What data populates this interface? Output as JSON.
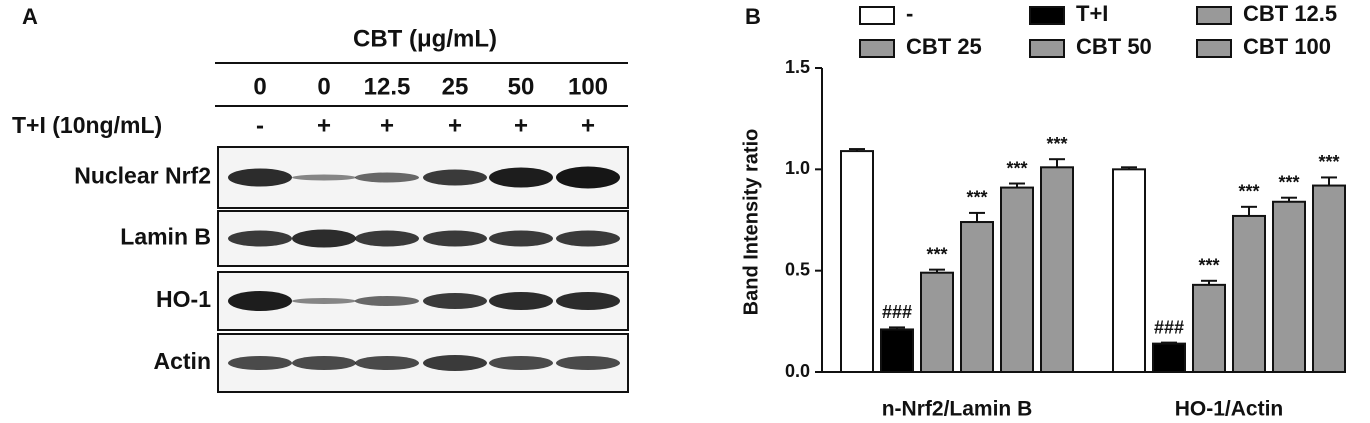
{
  "panel_a": {
    "label": "A",
    "header": "CBT (μg/mL)",
    "concentrations": [
      "0",
      "0",
      "12.5",
      "25",
      "50",
      "100"
    ],
    "treatment_label": "T+I (10ng/mL)",
    "treatment": [
      "-",
      "+",
      "+",
      "+",
      "+",
      "+"
    ],
    "rows": [
      "Nuclear Nrf2",
      "Lamin B",
      "HO-1",
      "Actin"
    ]
  },
  "chart_data": {
    "type": "bar",
    "panel_label": "B",
    "y_label": "Band Intensity ratio",
    "categories": [
      "n-Nrf2/Lamin B",
      "HO-1/Actin"
    ],
    "ylim": [
      0,
      1.5
    ],
    "yticks": [
      {
        "value": 0,
        "label": "0.0"
      },
      0.5,
      {
        "value": 1,
        "label": "1.0"
      },
      1.5
    ],
    "series": [
      {
        "name": "-",
        "color": "#ffffff",
        "values": [
          1.09,
          1.0
        ],
        "errors": [
          0.01,
          0.01
        ],
        "annotations": [
          null,
          null
        ]
      },
      {
        "name": "T+I",
        "color": "#000000",
        "values": [
          0.21,
          0.14
        ],
        "errors": [
          0.01,
          0.005
        ],
        "annotations": [
          "###",
          "###"
        ]
      },
      {
        "name": "CBT 12.5",
        "color": "#999999",
        "values": [
          0.49,
          0.43
        ],
        "errors": [
          0.015,
          0.02
        ],
        "annotations": [
          "***",
          "***"
        ]
      },
      {
        "name": "CBT 25",
        "color": "#999999",
        "values": [
          0.74,
          0.77
        ],
        "errors": [
          0.045,
          0.045
        ],
        "annotations": [
          "***",
          "***"
        ]
      },
      {
        "name": "CBT 50",
        "color": "#999999",
        "values": [
          0.91,
          0.84
        ],
        "errors": [
          0.02,
          0.02
        ],
        "annotations": [
          "***",
          "***"
        ]
      },
      {
        "name": "CBT 100",
        "color": "#999999",
        "values": [
          1.01,
          0.92
        ],
        "errors": [
          0.04,
          0.04
        ],
        "annotations": [
          "***",
          "***"
        ]
      }
    ]
  }
}
